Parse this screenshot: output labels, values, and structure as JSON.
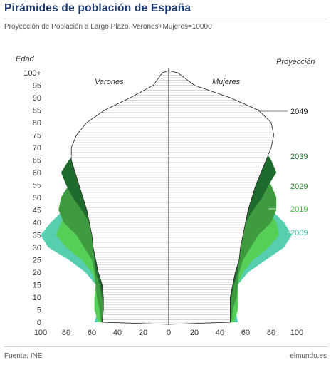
{
  "header": {
    "title": "Pirámides de población de España",
    "subtitle": "Proyección de Población a Largo Plazo. Varones+Mujeres=10000"
  },
  "footer": {
    "source": "Fuente: INE",
    "credit": "elmundo.es"
  },
  "colors": {
    "2009": "#55cfb0",
    "2019": "#55cf55",
    "2029": "#3f9b3f",
    "2039": "#1f6b2d",
    "2049": "#ffffff",
    "outline": "#333333",
    "title": "#1e3c72"
  },
  "chart_data": {
    "type": "population-pyramid",
    "title": "Pirámides de población de España",
    "ylabel": "Edad",
    "legend_title": "Proyección",
    "left_label": "Varones",
    "right_label": "Mujeres",
    "xlim": [
      -100,
      100
    ],
    "x_ticks": [
      100,
      80,
      60,
      40,
      20,
      0,
      20,
      40,
      60,
      80,
      100
    ],
    "y_ticks": [
      "0",
      "5",
      "10",
      "15",
      "20",
      "25",
      "30",
      "35",
      "40",
      "45",
      "50",
      "55",
      "60",
      "65",
      "70",
      "75",
      "80",
      "85",
      "90",
      "95",
      "100+"
    ],
    "series": [
      {
        "name": "2049",
        "ages": [
          0,
          5,
          10,
          15,
          20,
          25,
          30,
          35,
          40,
          45,
          50,
          55,
          60,
          65,
          70,
          75,
          80,
          85,
          90,
          95,
          100
        ],
        "varones": [
          52,
          51,
          51,
          52,
          55,
          57,
          59,
          60,
          62,
          64,
          67,
          70,
          73,
          76,
          76,
          72,
          64,
          50,
          30,
          12,
          5
        ],
        "mujeres": [
          48,
          48,
          48,
          50,
          52,
          55,
          56,
          58,
          60,
          62,
          65,
          68,
          72,
          76,
          80,
          82,
          80,
          70,
          48,
          20,
          7
        ]
      },
      {
        "name": "2039",
        "ages": [
          0,
          5,
          10,
          15,
          20,
          25,
          30,
          35,
          40,
          45,
          50,
          55,
          60,
          65,
          70,
          75,
          80,
          85,
          90,
          95,
          100
        ],
        "varones": [
          51,
          51,
          52,
          54,
          57,
          58,
          59,
          60,
          62,
          68,
          75,
          80,
          84,
          78,
          68,
          58,
          46,
          32,
          18,
          7,
          3
        ],
        "mujeres": [
          47,
          48,
          49,
          51,
          54,
          55,
          56,
          57,
          60,
          66,
          73,
          78,
          84,
          80,
          74,
          68,
          60,
          46,
          28,
          12,
          4
        ]
      },
      {
        "name": "2029",
        "ages": [
          0,
          5,
          10,
          15,
          20,
          25,
          30,
          35,
          40,
          45,
          50,
          55,
          60,
          65,
          70,
          75,
          80,
          85,
          90,
          95,
          100
        ],
        "varones": [
          53,
          54,
          56,
          57,
          58,
          60,
          66,
          72,
          82,
          86,
          84,
          78,
          68,
          58,
          50,
          40,
          28,
          16,
          8,
          3,
          1
        ],
        "mujeres": [
          49,
          50,
          53,
          54,
          55,
          58,
          64,
          70,
          80,
          84,
          84,
          80,
          70,
          62,
          56,
          50,
          40,
          26,
          13,
          5,
          2
        ]
      },
      {
        "name": "2019",
        "ages": [
          0,
          5,
          10,
          15,
          20,
          25,
          30,
          35,
          40,
          45,
          50,
          55,
          60,
          65,
          70,
          75,
          80,
          85,
          90,
          95,
          100
        ],
        "varones": [
          55,
          58,
          58,
          57,
          60,
          68,
          80,
          88,
          84,
          76,
          66,
          58,
          50,
          42,
          32,
          22,
          13,
          6,
          3,
          1,
          0
        ],
        "mujeres": [
          51,
          54,
          54,
          54,
          58,
          66,
          78,
          86,
          84,
          78,
          68,
          62,
          56,
          48,
          40,
          30,
          20,
          10,
          4,
          1,
          0
        ]
      },
      {
        "name": "2009",
        "ages": [
          0,
          5,
          10,
          15,
          20,
          25,
          30,
          35,
          40,
          45,
          50,
          55,
          60,
          65,
          70,
          75,
          80,
          85,
          90,
          95,
          100
        ],
        "varones": [
          58,
          55,
          54,
          57,
          65,
          78,
          94,
          100,
          92,
          82,
          70,
          60,
          50,
          40,
          30,
          20,
          12,
          6,
          2,
          1,
          0
        ],
        "mujeres": [
          54,
          52,
          51,
          54,
          62,
          76,
          90,
          96,
          90,
          80,
          70,
          62,
          55,
          46,
          36,
          26,
          17,
          8,
          3,
          1,
          0
        ]
      }
    ]
  }
}
